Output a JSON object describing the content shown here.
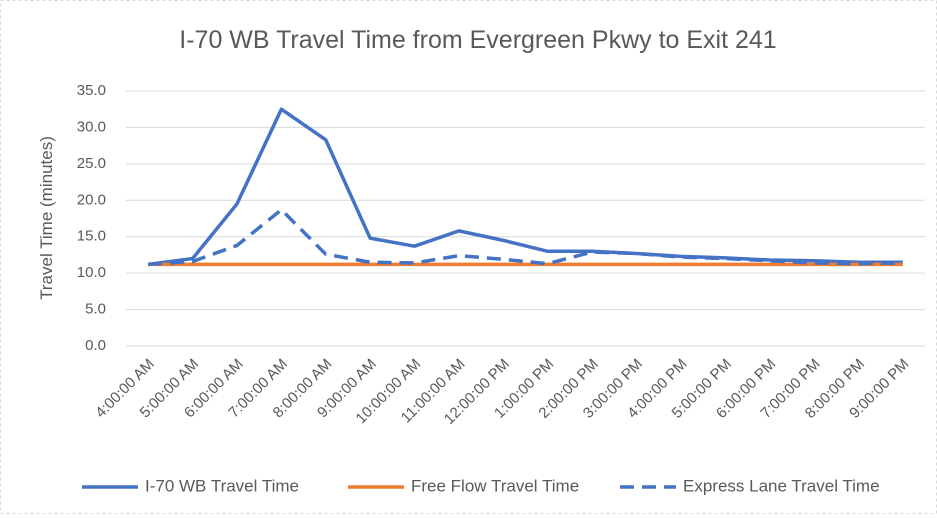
{
  "chart_data": {
    "type": "line",
    "title": "I-70 WB Travel Time from Evergreen Pkwy to Exit 241",
    "y_label": "Travel Time (minutes)",
    "categories": [
      "4:00:00 AM",
      "5:00:00 AM",
      "6:00:00 AM",
      "7:00:00 AM",
      "8:00:00 AM",
      "9:00:00 AM",
      "10:00:00 AM",
      "11:00:00 AM",
      "12:00:00 PM",
      "1:00:00 PM",
      "2:00:00 PM",
      "3:00:00 PM",
      "4:00:00 PM",
      "5:00:00 PM",
      "6:00:00 PM",
      "7:00:00 PM",
      "8:00:00 PM",
      "9:00:00 PM"
    ],
    "series": [
      {
        "name": "I-70 WB Travel Time",
        "color": "#4472c4",
        "dashed": false,
        "values": [
          11.2,
          12.0,
          19.5,
          32.5,
          28.3,
          14.8,
          13.7,
          15.8,
          14.5,
          13.0,
          13.0,
          12.7,
          12.3,
          12.1,
          11.8,
          11.7,
          11.5,
          11.5
        ]
      },
      {
        "name": "Free Flow Travel Time",
        "color": "#ed7d31",
        "dashed": false,
        "values": [
          11.2,
          11.2,
          11.2,
          11.2,
          11.2,
          11.2,
          11.2,
          11.2,
          11.2,
          11.2,
          11.2,
          11.2,
          11.2,
          11.2,
          11.2,
          11.2,
          11.2,
          11.2
        ]
      },
      {
        "name": "Express Lane Travel Time",
        "color": "#4472c4",
        "dashed": true,
        "values": [
          11.2,
          11.6,
          13.8,
          18.7,
          12.6,
          11.5,
          11.4,
          12.4,
          11.9,
          11.3,
          12.9,
          12.7,
          12.2,
          12.0,
          11.7,
          11.4,
          11.3,
          11.4
        ]
      }
    ],
    "ylim": [
      0,
      35
    ],
    "yticks": [
      {
        "value": 0,
        "label": "0.0"
      },
      {
        "value": 5,
        "label": "5.0"
      },
      {
        "value": 10,
        "label": "10.0"
      },
      {
        "value": 15,
        "label": "15.0"
      },
      {
        "value": 20,
        "label": "20.0"
      },
      {
        "value": 25,
        "label": "25.0"
      },
      {
        "value": 30,
        "label": "30.0"
      },
      {
        "value": 35,
        "label": "35.0"
      }
    ],
    "grid": true,
    "legend": "bottom"
  }
}
